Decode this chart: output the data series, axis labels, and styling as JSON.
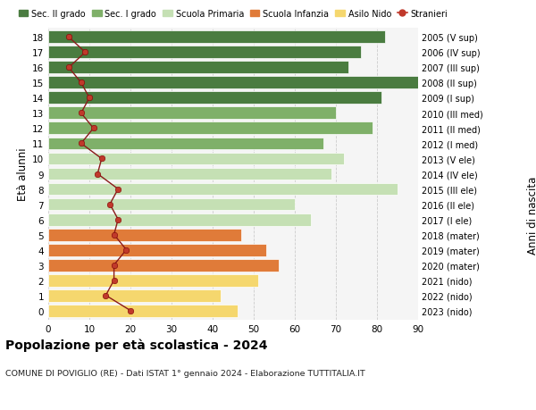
{
  "ages": [
    18,
    17,
    16,
    15,
    14,
    13,
    12,
    11,
    10,
    9,
    8,
    7,
    6,
    5,
    4,
    3,
    2,
    1,
    0
  ],
  "bar_values": [
    82,
    76,
    73,
    90,
    81,
    70,
    79,
    67,
    72,
    69,
    85,
    60,
    64,
    47,
    53,
    56,
    51,
    42,
    46
  ],
  "right_labels": [
    "2005 (V sup)",
    "2006 (IV sup)",
    "2007 (III sup)",
    "2008 (II sup)",
    "2009 (I sup)",
    "2010 (III med)",
    "2011 (II med)",
    "2012 (I med)",
    "2013 (V ele)",
    "2014 (IV ele)",
    "2015 (III ele)",
    "2016 (II ele)",
    "2017 (I ele)",
    "2018 (mater)",
    "2019 (mater)",
    "2020 (mater)",
    "2021 (nido)",
    "2022 (nido)",
    "2023 (nido)"
  ],
  "bar_colors": [
    "#4a7c40",
    "#4a7c40",
    "#4a7c40",
    "#4a7c40",
    "#4a7c40",
    "#7fb069",
    "#7fb069",
    "#7fb069",
    "#c5e0b4",
    "#c5e0b4",
    "#c5e0b4",
    "#c5e0b4",
    "#c5e0b4",
    "#e07b39",
    "#e07b39",
    "#e07b39",
    "#f5d76e",
    "#f5d76e",
    "#f5d76e"
  ],
  "stranieri_values": [
    5,
    9,
    5,
    8,
    10,
    8,
    11,
    8,
    13,
    12,
    17,
    15,
    17,
    16,
    19,
    16,
    16,
    14,
    20
  ],
  "legend_labels": [
    "Sec. II grado",
    "Sec. I grado",
    "Scuola Primaria",
    "Scuola Infanzia",
    "Asilo Nido",
    "Stranieri"
  ],
  "legend_colors": [
    "#4a7c40",
    "#7fb069",
    "#c5e0b4",
    "#e07b39",
    "#f5d76e",
    "#c0392b"
  ],
  "title": "Popolazione per età scolastica - 2024",
  "subtitle": "COMUNE DI POVIGLIO (RE) - Dati ISTAT 1° gennaio 2024 - Elaborazione TUTTITALIA.IT",
  "ylabel_left": "Età alunni",
  "ylabel_right": "Anni di nascita",
  "xlim": [
    0,
    90
  ],
  "xticks": [
    0,
    10,
    20,
    30,
    40,
    50,
    60,
    70,
    80,
    90
  ],
  "bg_color": "#ffffff",
  "plot_bg_color": "#f5f5f5",
  "grid_color": "#cccccc"
}
